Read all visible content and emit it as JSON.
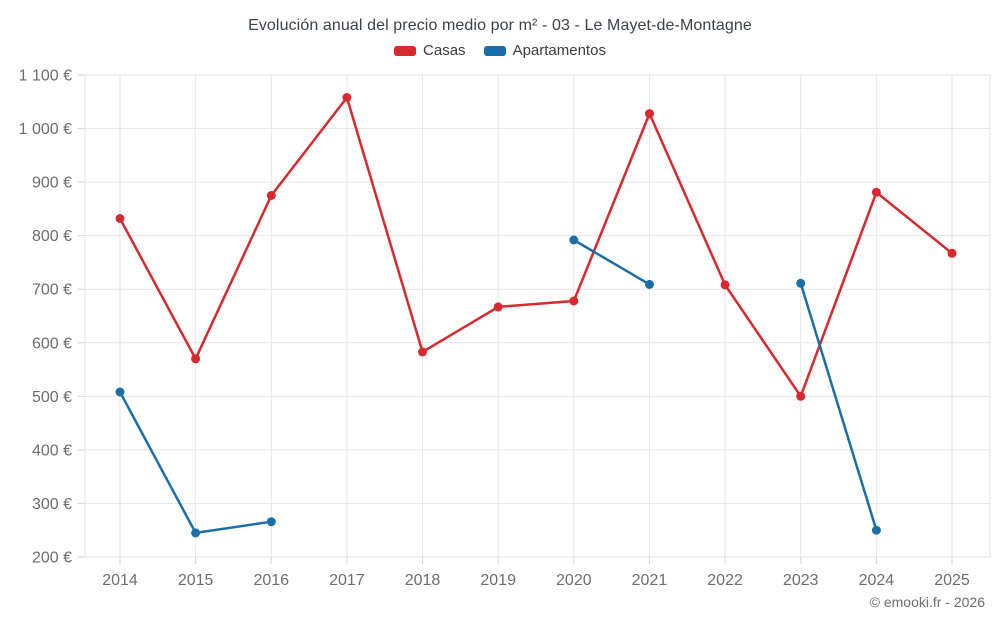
{
  "chart_data": {
    "type": "line",
    "title": "Evolución anual del precio medio por m² - 03 - Le Mayet-de-Montagne",
    "credits": "© emooki.fr - 2026",
    "categories": [
      "2014",
      "2015",
      "2016",
      "2017",
      "2018",
      "2019",
      "2020",
      "2021",
      "2022",
      "2023",
      "2024",
      "2025"
    ],
    "series": [
      {
        "name": "Casas",
        "color": "#d9282e",
        "values": [
          832,
          570,
          875,
          1058,
          583,
          667,
          678,
          1028,
          708,
          500,
          881,
          767
        ]
      },
      {
        "name": "Apartamentos",
        "color": "#1b6fa8",
        "values": [
          508,
          245,
          266,
          null,
          null,
          null,
          792,
          709,
          null,
          711,
          250,
          null
        ]
      }
    ],
    "ylim": [
      200,
      1100
    ],
    "ytick_step": 100,
    "ytick_labels": [
      "200 €",
      "300 €",
      "400 €",
      "500 €",
      "600 €",
      "700 €",
      "800 €",
      "900 €",
      "1 000 €",
      "1 100 €"
    ],
    "grid": true,
    "legend_position": "top"
  }
}
